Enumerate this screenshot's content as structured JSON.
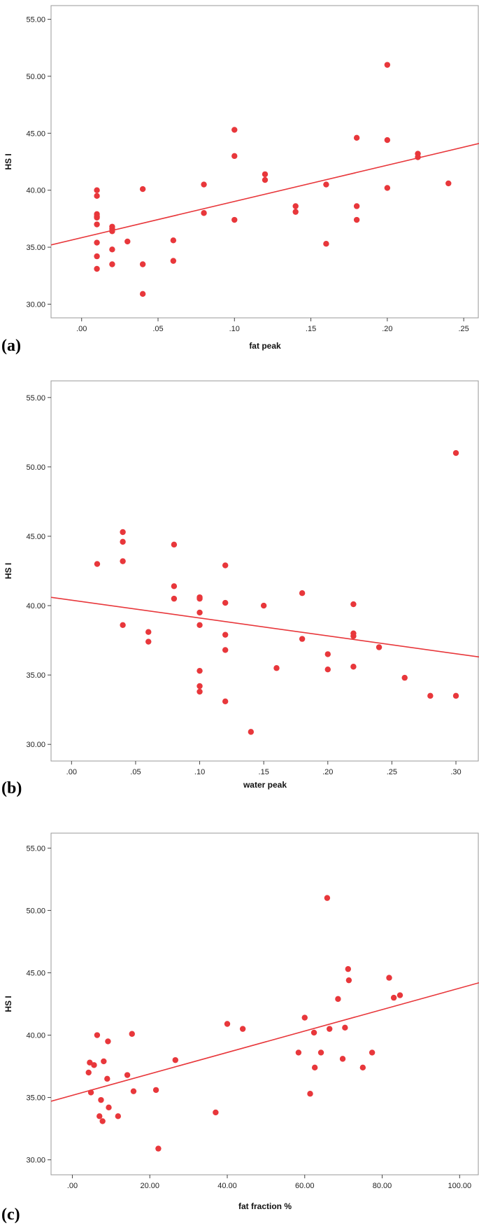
{
  "colors": {
    "marker": "#e8373b",
    "fit_line": "#e8373b",
    "axis": "#444444",
    "frame": "#9a9a9a"
  },
  "chart_data": [
    {
      "type": "scatter",
      "panel_label": "(a)",
      "xlabel": "fat peak",
      "ylabel": "HS I",
      "xlim": [
        -0.02,
        0.26
      ],
      "ylim": [
        28.8,
        56.2
      ],
      "xticks": [
        0,
        0.05,
        0.1,
        0.15,
        0.2,
        0.25
      ],
      "xtick_labels": [
        ".00",
        ".05",
        ".10",
        ".15",
        ".20",
        ".25"
      ],
      "yticks": [
        30,
        35,
        40,
        45,
        50,
        55
      ],
      "ytick_labels": [
        "30.00",
        "35.00",
        "40.00",
        "45.00",
        "50.00",
        "55.00"
      ],
      "grid": false,
      "points": [
        [
          0.01,
          40.0
        ],
        [
          0.01,
          39.5
        ],
        [
          0.01,
          37.9
        ],
        [
          0.01,
          37.7
        ],
        [
          0.01,
          37.6
        ],
        [
          0.01,
          37.0
        ],
        [
          0.01,
          35.4
        ],
        [
          0.01,
          34.2
        ],
        [
          0.01,
          33.1
        ],
        [
          0.02,
          36.8
        ],
        [
          0.02,
          36.6
        ],
        [
          0.02,
          36.4
        ],
        [
          0.02,
          34.8
        ],
        [
          0.02,
          33.5
        ],
        [
          0.03,
          35.5
        ],
        [
          0.04,
          40.1
        ],
        [
          0.04,
          33.5
        ],
        [
          0.04,
          30.9
        ],
        [
          0.06,
          35.6
        ],
        [
          0.06,
          33.8
        ],
        [
          0.08,
          40.5
        ],
        [
          0.08,
          38.0
        ],
        [
          0.1,
          45.3
        ],
        [
          0.1,
          43.0
        ],
        [
          0.1,
          37.4
        ],
        [
          0.12,
          41.4
        ],
        [
          0.12,
          40.9
        ],
        [
          0.14,
          38.6
        ],
        [
          0.14,
          38.1
        ],
        [
          0.16,
          40.5
        ],
        [
          0.16,
          35.3
        ],
        [
          0.18,
          44.6
        ],
        [
          0.18,
          38.6
        ],
        [
          0.18,
          37.4
        ],
        [
          0.2,
          51.0
        ],
        [
          0.2,
          44.4
        ],
        [
          0.2,
          40.2
        ],
        [
          0.22,
          43.2
        ],
        [
          0.22,
          42.9
        ],
        [
          0.24,
          40.6
        ]
      ],
      "fit_line": [
        [
          -0.02,
          35.2
        ],
        [
          0.26,
          44.1
        ]
      ]
    },
    {
      "type": "scatter",
      "panel_label": "(b)",
      "xlabel": "water peak",
      "ylabel": "HS I",
      "xlim": [
        -0.016,
        0.318
      ],
      "ylim": [
        28.8,
        56.2
      ],
      "xticks": [
        0,
        0.05,
        0.1,
        0.15,
        0.2,
        0.25,
        0.3
      ],
      "xtick_labels": [
        ".00",
        ".05",
        ".10",
        ".15",
        ".20",
        ".25",
        ".30"
      ],
      "yticks": [
        30,
        35,
        40,
        45,
        50,
        55
      ],
      "ytick_labels": [
        "30.00",
        "35.00",
        "40.00",
        "45.00",
        "50.00",
        "55.00"
      ],
      "grid": false,
      "points": [
        [
          0.02,
          43.0
        ],
        [
          0.04,
          45.3
        ],
        [
          0.04,
          44.6
        ],
        [
          0.04,
          43.2
        ],
        [
          0.04,
          38.6
        ],
        [
          0.06,
          38.1
        ],
        [
          0.06,
          37.4
        ],
        [
          0.08,
          44.4
        ],
        [
          0.08,
          41.4
        ],
        [
          0.08,
          40.5
        ],
        [
          0.1,
          40.6
        ],
        [
          0.1,
          40.5
        ],
        [
          0.1,
          39.5
        ],
        [
          0.1,
          38.6
        ],
        [
          0.1,
          35.3
        ],
        [
          0.1,
          34.2
        ],
        [
          0.1,
          33.8
        ],
        [
          0.12,
          42.9
        ],
        [
          0.12,
          40.2
        ],
        [
          0.12,
          37.9
        ],
        [
          0.12,
          36.8
        ],
        [
          0.12,
          33.1
        ],
        [
          0.14,
          30.9
        ],
        [
          0.15,
          40.0
        ],
        [
          0.16,
          35.5
        ],
        [
          0.18,
          40.9
        ],
        [
          0.18,
          37.6
        ],
        [
          0.2,
          36.5
        ],
        [
          0.2,
          35.4
        ],
        [
          0.22,
          40.1
        ],
        [
          0.22,
          38.0
        ],
        [
          0.22,
          37.8
        ],
        [
          0.22,
          35.6
        ],
        [
          0.24,
          37.0
        ],
        [
          0.26,
          34.8
        ],
        [
          0.28,
          33.5
        ],
        [
          0.3,
          51.0
        ],
        [
          0.3,
          33.5
        ]
      ],
      "fit_line": [
        [
          -0.016,
          40.6
        ],
        [
          0.318,
          36.3
        ]
      ]
    },
    {
      "type": "scatter",
      "panel_label": "(c)",
      "xlabel": "fat fraction  %",
      "ylabel": "HS I",
      "xlim": [
        -5.5,
        105
      ],
      "ylim": [
        28.8,
        56.2
      ],
      "xticks": [
        0,
        20,
        40,
        60,
        80,
        100
      ],
      "xtick_labels": [
        ".00",
        "20.00",
        "40.00",
        "60.00",
        "80.00",
        "100.00"
      ],
      "yticks": [
        30,
        35,
        40,
        45,
        50,
        55
      ],
      "ytick_labels": [
        "30.00",
        "35.00",
        "40.00",
        "45.00",
        "50.00",
        "55.00"
      ],
      "grid": false,
      "points": [
        [
          4.2,
          37.0
        ],
        [
          4.5,
          37.8
        ],
        [
          4.8,
          35.4
        ],
        [
          5.6,
          37.6
        ],
        [
          6.4,
          40.0
        ],
        [
          7.0,
          33.5
        ],
        [
          7.4,
          34.8
        ],
        [
          7.8,
          33.1
        ],
        [
          8.1,
          37.9
        ],
        [
          9.0,
          36.5
        ],
        [
          9.2,
          39.5
        ],
        [
          9.4,
          34.2
        ],
        [
          11.8,
          33.5
        ],
        [
          14.2,
          36.8
        ],
        [
          15.4,
          40.1
        ],
        [
          15.8,
          35.5
        ],
        [
          21.6,
          35.6
        ],
        [
          22.2,
          30.9
        ],
        [
          26.6,
          38.0
        ],
        [
          37.0,
          33.8
        ],
        [
          40.0,
          40.9
        ],
        [
          44.0,
          40.5
        ],
        [
          58.4,
          38.6
        ],
        [
          60.0,
          41.4
        ],
        [
          61.4,
          35.3
        ],
        [
          62.4,
          40.2
        ],
        [
          62.6,
          37.4
        ],
        [
          64.2,
          38.6
        ],
        [
          65.8,
          51.0
        ],
        [
          66.4,
          40.5
        ],
        [
          68.6,
          42.9
        ],
        [
          69.8,
          38.1
        ],
        [
          70.4,
          40.6
        ],
        [
          71.2,
          45.3
        ],
        [
          71.4,
          44.4
        ],
        [
          75.0,
          37.4
        ],
        [
          77.4,
          38.6
        ],
        [
          81.8,
          44.6
        ],
        [
          83.0,
          43.0
        ],
        [
          84.6,
          43.2
        ]
      ],
      "fit_line": [
        [
          -5.5,
          34.7
        ],
        [
          105,
          44.2
        ]
      ]
    }
  ]
}
